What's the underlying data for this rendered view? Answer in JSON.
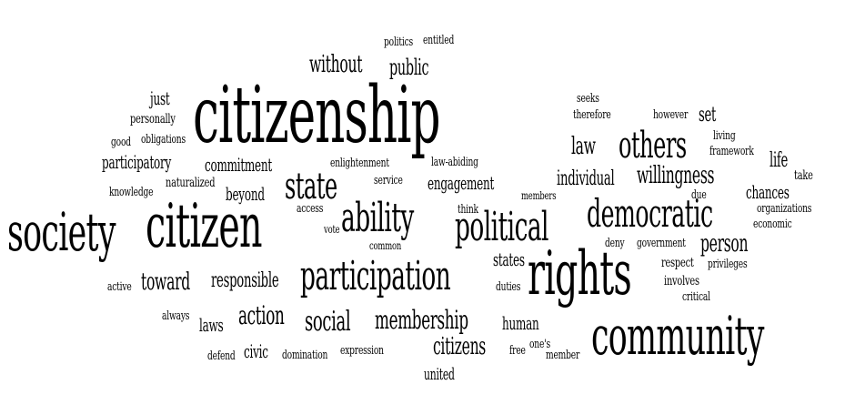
{
  "words": [
    {
      "id": "citizenship",
      "text": "citizenship",
      "color": "#000000"
    },
    {
      "id": "citizen",
      "text": "citizen",
      "color": "#000000"
    },
    {
      "id": "society",
      "text": "society",
      "color": "#000000"
    },
    {
      "id": "community",
      "text": "community",
      "color": "#000000"
    },
    {
      "id": "rights",
      "text": "rights",
      "color": "#000000"
    },
    {
      "id": "participation",
      "text": "participation",
      "color": "#000000"
    },
    {
      "id": "ability",
      "text": "ability",
      "color": "#000000"
    },
    {
      "id": "political",
      "text": "political",
      "color": "#000000"
    },
    {
      "id": "democratic",
      "text": "democratic",
      "color": "#000000"
    },
    {
      "id": "state",
      "text": "state",
      "color": "#000000"
    },
    {
      "id": "others",
      "text": "others",
      "color": "#000000"
    },
    {
      "id": "social",
      "text": "social",
      "color": "#000000"
    },
    {
      "id": "membership",
      "text": "membership",
      "color": "#000000"
    },
    {
      "id": "action",
      "text": "action",
      "color": "#000000"
    },
    {
      "id": "toward",
      "text": "toward",
      "color": "#000000"
    },
    {
      "id": "without",
      "text": "without",
      "color": "#000000"
    },
    {
      "id": "public",
      "text": "public",
      "color": "#000000"
    },
    {
      "id": "willingness",
      "text": "willingness",
      "color": "#000000"
    },
    {
      "id": "person",
      "text": "person",
      "color": "#000000"
    },
    {
      "id": "citizens",
      "text": "citizens",
      "color": "#000000"
    },
    {
      "id": "law",
      "text": "law",
      "color": "#000000"
    },
    {
      "id": "individual",
      "text": "individual",
      "color": "#000000"
    },
    {
      "id": "engagement",
      "text": "engagement",
      "color": "#000000"
    },
    {
      "id": "commitment",
      "text": "commitment",
      "color": "#000000"
    },
    {
      "id": "participatory",
      "text": "participatory",
      "color": "#000000"
    },
    {
      "id": "responsible",
      "text": "responsible",
      "color": "#000000"
    },
    {
      "id": "beyond",
      "text": "beyond",
      "color": "#000000"
    },
    {
      "id": "chances",
      "text": "chances",
      "color": "#000000"
    },
    {
      "id": "life",
      "text": "life",
      "color": "#000000"
    },
    {
      "id": "human",
      "text": "human",
      "color": "#000000"
    },
    {
      "id": "states",
      "text": "states",
      "color": "#000000"
    },
    {
      "id": "laws",
      "text": "laws",
      "color": "#000000"
    },
    {
      "id": "civic",
      "text": "civic",
      "color": "#000000"
    },
    {
      "id": "united",
      "text": "united",
      "color": "#000000"
    },
    {
      "id": "just",
      "text": "just",
      "color": "#000000"
    },
    {
      "id": "set",
      "text": "set",
      "color": "#000000"
    },
    {
      "id": "politics",
      "text": "politics",
      "color": "#000000"
    },
    {
      "id": "entitled",
      "text": "entitled",
      "color": "#000000"
    },
    {
      "id": "personally",
      "text": "personally",
      "color": "#000000"
    },
    {
      "id": "good",
      "text": "good",
      "color": "#000000"
    },
    {
      "id": "obligations",
      "text": "obligations",
      "color": "#000000"
    },
    {
      "id": "seeks",
      "text": "seeks",
      "color": "#000000"
    },
    {
      "id": "therefore",
      "text": "therefore",
      "color": "#000000"
    },
    {
      "id": "however",
      "text": "however",
      "color": "#000000"
    },
    {
      "id": "living",
      "text": "living",
      "color": "#000000"
    },
    {
      "id": "framework",
      "text": "framework",
      "color": "#000000"
    },
    {
      "id": "enlightenment",
      "text": "enlightenment",
      "color": "#000000"
    },
    {
      "id": "law-abiding",
      "text": "law-abiding",
      "color": "#000000"
    },
    {
      "id": "take",
      "text": "take",
      "color": "#000000"
    },
    {
      "id": "naturalized",
      "text": "naturalized",
      "color": "#000000"
    },
    {
      "id": "knowledge",
      "text": "knowledge",
      "color": "#000000"
    },
    {
      "id": "service",
      "text": "service",
      "color": "#000000"
    },
    {
      "id": "members",
      "text": "members",
      "color": "#000000"
    },
    {
      "id": "due",
      "text": "due",
      "color": "#000000"
    },
    {
      "id": "organizations",
      "text": "organizations",
      "color": "#000000"
    },
    {
      "id": "access",
      "text": "access",
      "color": "#000000"
    },
    {
      "id": "think",
      "text": "think",
      "color": "#000000"
    },
    {
      "id": "economic",
      "text": "economic",
      "color": "#000000"
    },
    {
      "id": "vote",
      "text": "vote",
      "color": "#000000"
    },
    {
      "id": "common",
      "text": "common",
      "color": "#000000"
    },
    {
      "id": "deny",
      "text": "deny",
      "color": "#000000"
    },
    {
      "id": "government",
      "text": "government",
      "color": "#000000"
    },
    {
      "id": "respect",
      "text": "respect",
      "color": "#000000"
    },
    {
      "id": "privileges",
      "text": "privileges",
      "color": "#000000"
    },
    {
      "id": "active",
      "text": "active",
      "color": "#000000"
    },
    {
      "id": "involves",
      "text": "involves",
      "color": "#000000"
    },
    {
      "id": "critical",
      "text": "critical",
      "color": "#000000"
    },
    {
      "id": "duties",
      "text": "duties",
      "color": "#000000"
    },
    {
      "id": "always",
      "text": "always",
      "color": "#000000"
    },
    {
      "id": "expression",
      "text": "expression",
      "color": "#000000"
    },
    {
      "id": "defend",
      "text": "defend",
      "color": "#000000"
    },
    {
      "id": "domination",
      "text": "domination",
      "color": "#000000"
    },
    {
      "id": "one-s",
      "text": "one's",
      "color": "#000000"
    },
    {
      "id": "free",
      "text": "free",
      "color": "#000000"
    },
    {
      "id": "member",
      "text": "member",
      "color": "#000000"
    }
  ]
}
